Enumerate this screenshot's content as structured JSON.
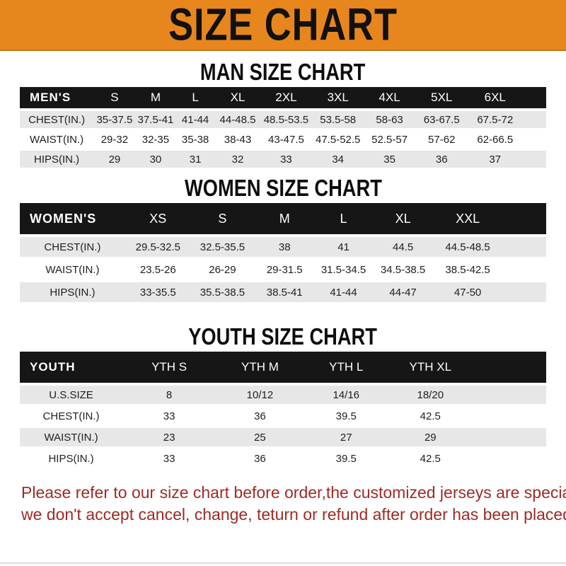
{
  "banner": {
    "title": "SIZE CHART"
  },
  "sections": {
    "men": {
      "heading": "MAN SIZE CHART",
      "table": {
        "corner": "MEN'S",
        "sizes": [
          "S",
          "M",
          "L",
          "XL",
          "2XL",
          "3XL",
          "4XL",
          "5XL",
          "6XL"
        ],
        "rows": [
          {
            "label": "CHEST(IN.)",
            "values": [
              "35-37.5",
              "37.5-41",
              "41-44",
              "44-48.5",
              "48.5-53.5",
              "53.5-58",
              "58-63",
              "63-67.5",
              "67.5-72"
            ]
          },
          {
            "label": "WAIST(IN.)",
            "values": [
              "29-32",
              "32-35",
              "35-38",
              "38-43",
              "43-47.5",
              "47.5-52.5",
              "52.5-57",
              "57-62",
              "62-66.5"
            ]
          },
          {
            "label": "HIPS(IN.)",
            "values": [
              "29",
              "30",
              "31",
              "32",
              "33",
              "34",
              "35",
              "36",
              "37"
            ]
          }
        ]
      }
    },
    "women": {
      "heading": "WOMEN SIZE CHART",
      "table": {
        "corner": "WOMEN'S",
        "sizes": [
          "XS",
          "S",
          "M",
          "L",
          "XL",
          "XXL"
        ],
        "rows": [
          {
            "label": "CHEST(IN.)",
            "values": [
              "29.5-32.5",
              "32.5-35.5",
              "38",
              "41",
              "44.5",
              "44.5-48.5"
            ]
          },
          {
            "label": "WAIST(IN.)",
            "values": [
              "23.5-26",
              "26-29",
              "29-31.5",
              "31.5-34.5",
              "34.5-38.5",
              "38.5-42.5"
            ]
          },
          {
            "label": "HIPS(IN.)",
            "values": [
              "33-35.5",
              "35.5-38.5",
              "38.5-41",
              "41-44",
              "44-47",
              "47-50"
            ]
          }
        ]
      }
    },
    "youth": {
      "heading": "YOUTH SIZE CHART",
      "table": {
        "corner": "YOUTH",
        "sizes": [
          "YTH S",
          "YTH M",
          "YTH L",
          "YTH XL"
        ],
        "rows": [
          {
            "label": "U.S.SIZE",
            "values": [
              "8",
              "10/12",
              "14/16",
              "18/20"
            ]
          },
          {
            "label": "CHEST(IN.)",
            "values": [
              "33",
              "36",
              "39.5",
              "42.5"
            ]
          },
          {
            "label": "WAIST(IN.)",
            "values": [
              "23",
              "25",
              "27",
              "29"
            ]
          },
          {
            "label": "HIPS(IN.)",
            "values": [
              "33",
              "36",
              "39.5",
              "42.5"
            ]
          }
        ]
      }
    }
  },
  "footer": {
    "line1": "Please refer to our size chart before order,the customized jerseys are special products,",
    "line2": "we don't accept cancel, change, teturn or refund after order has been placed!"
  },
  "colors": {
    "banner_bg": "#E8861E",
    "bar_bg": "#161616",
    "row_alt": "#E7E7E7",
    "footer_text": "#9E2A25"
  }
}
